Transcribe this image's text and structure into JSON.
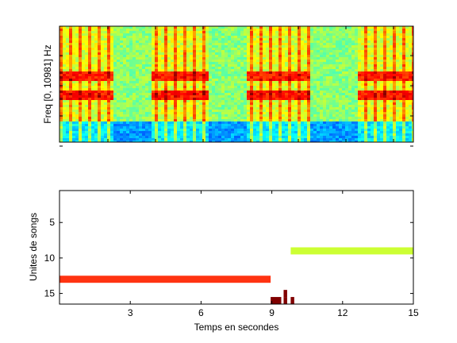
{
  "chart_data": [
    {
      "type": "heatmap",
      "ylabel": "Freq [0, 10981] Hz",
      "xlabel": "",
      "title": "",
      "colormap": "jet",
      "song_segments_s": [
        [
          0.0,
          3.1
        ],
        [
          5.3,
          8.8
        ],
        [
          11.0,
          14.8
        ],
        [
          17.6,
          21.0
        ]
      ],
      "harmonic_bands_fraction_of_height": [
        0.42,
        0.58
      ],
      "noise_floor_band_fraction_of_height": [
        0.82,
        1.0
      ]
    },
    {
      "type": "bar",
      "orientation": "horizontal",
      "xlabel": "Temps en secondes",
      "ylabel": "Unites de songs",
      "xlim": [
        0,
        15
      ],
      "ylim": [
        0.5,
        16.5
      ],
      "y_reversed": true,
      "xticks": [
        3,
        6,
        9,
        12,
        15
      ],
      "yticks": [
        5,
        10,
        15
      ],
      "series": [
        {
          "unit": 9,
          "start": 9.8,
          "end": 15.0,
          "color": "#ccff33"
        },
        {
          "unit": 13,
          "start": 0.0,
          "end": 8.95,
          "color": "#ff3311"
        },
        {
          "unit": 15,
          "start": 9.5,
          "end": 9.65,
          "color": "#800000"
        },
        {
          "unit": 16,
          "start": 8.95,
          "end": 9.4,
          "color": "#800000"
        },
        {
          "unit": 16,
          "start": 9.5,
          "end": 9.65,
          "color": "#800000"
        },
        {
          "unit": 16,
          "start": 9.8,
          "end": 9.95,
          "color": "#800000"
        }
      ]
    }
  ]
}
